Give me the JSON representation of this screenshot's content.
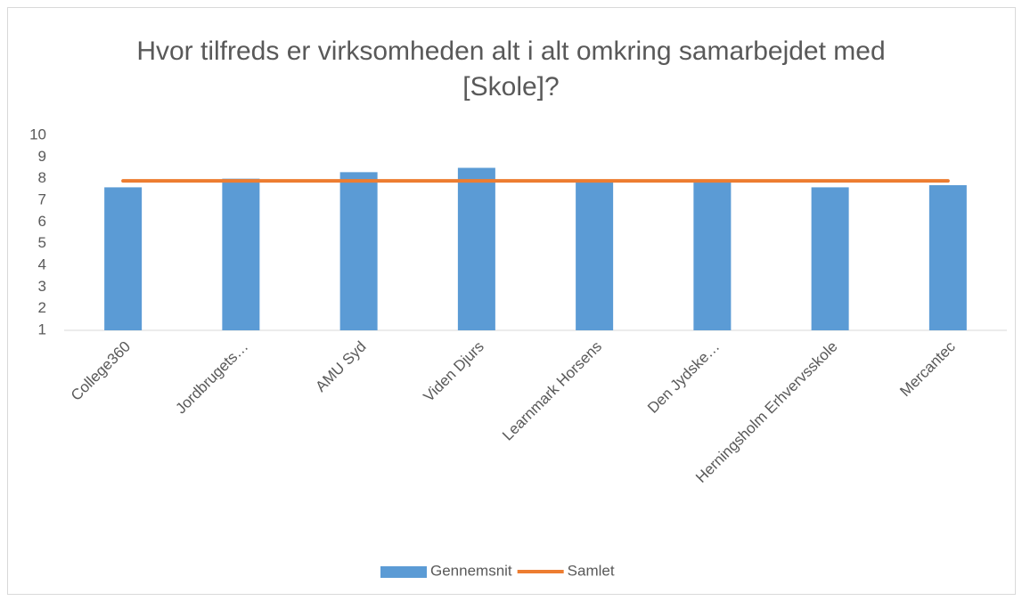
{
  "chart_data": {
    "type": "bar",
    "title": "Hvor tilfreds er virksomheden alt i alt omkring samarbejdet med [Skole]?",
    "categories": [
      "College360",
      "Jordbrugets…",
      "AMU Syd",
      "Viden Djurs",
      "Learnmark Horsens",
      "Den Jydske…",
      "Herningsholm Erhvervsskole",
      "Mercantec"
    ],
    "series": [
      {
        "name": "Gennemsnit",
        "type": "bar",
        "color": "#5b9bd5",
        "values": [
          7.6,
          8.0,
          8.3,
          8.5,
          7.9,
          7.9,
          7.6,
          7.7
        ]
      },
      {
        "name": "Samlet",
        "type": "line",
        "color": "#ed7d31",
        "values": [
          7.9,
          7.9,
          7.9,
          7.9,
          7.9,
          7.9,
          7.9,
          7.9
        ]
      }
    ],
    "ylim": [
      1,
      10
    ],
    "yticks": [
      1,
      2,
      3,
      4,
      5,
      6,
      7,
      8,
      9,
      10
    ],
    "grid": false,
    "legend": "bottom"
  }
}
